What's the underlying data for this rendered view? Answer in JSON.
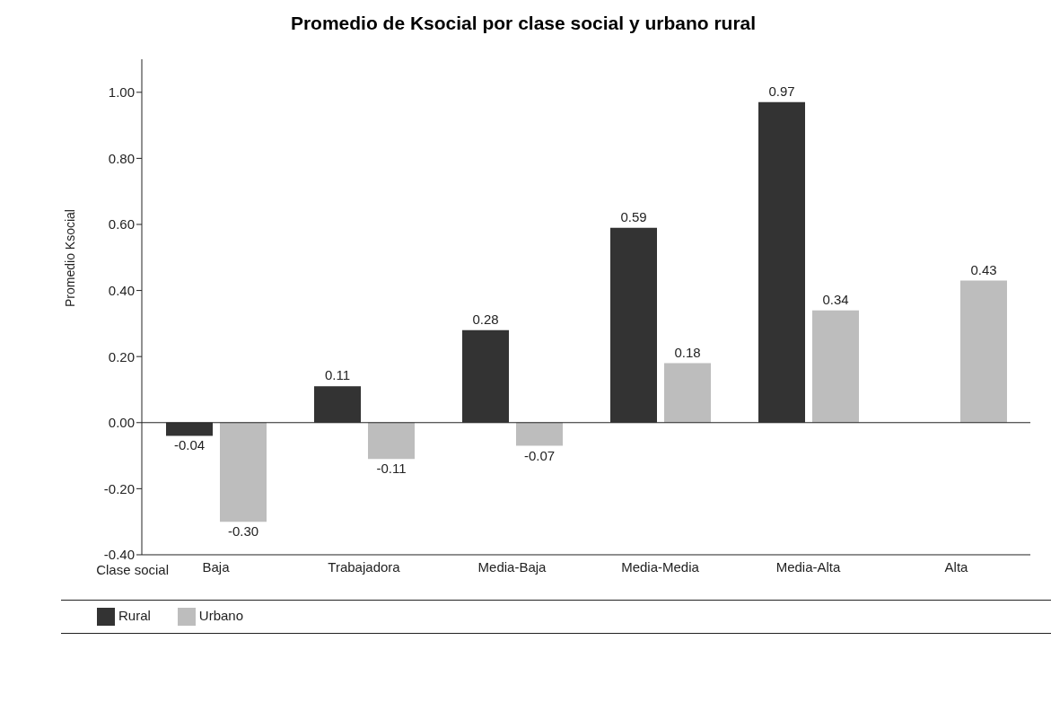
{
  "chart_data": {
    "type": "bar",
    "title": "Promedio de Ksocial por clase social y urbano rural",
    "xlabel": "Clase social",
    "ylabel": "Promedio Ksocial",
    "categories": [
      "Baja",
      "Trabajadora",
      "Media-Baja",
      "Media-Media",
      "Media-Alta",
      "Alta"
    ],
    "series": [
      {
        "name": "Rural",
        "color": "#333333",
        "values": [
          -0.04,
          0.11,
          0.28,
          0.59,
          0.97,
          null
        ],
        "value_labels": [
          "-0.04",
          "0.11",
          "0.28",
          "0.59",
          "0.97",
          null
        ]
      },
      {
        "name": "Urbano",
        "color": "#bdbdbd",
        "values": [
          -0.3,
          -0.11,
          -0.07,
          0.18,
          0.34,
          0.43
        ],
        "value_labels": [
          "-0.30",
          "-0.11",
          "-0.07",
          "0.18",
          "0.34",
          "0.43"
        ]
      }
    ],
    "ylim": [
      -0.4,
      1.1
    ],
    "yticks": [
      {
        "value": -0.4,
        "label": "-0.40"
      },
      {
        "value": -0.2,
        "label": "-0.20"
      },
      {
        "value": 0,
        "label": "0.00"
      },
      {
        "value": 0.2,
        "label": "0.20"
      },
      {
        "value": 0.4,
        "label": "0.40"
      },
      {
        "value": 0.6,
        "label": "0.60"
      },
      {
        "value": 0.8,
        "label": "0.80"
      },
      {
        "value": 1,
        "label": "1.00"
      }
    ],
    "legend": "bottom"
  }
}
